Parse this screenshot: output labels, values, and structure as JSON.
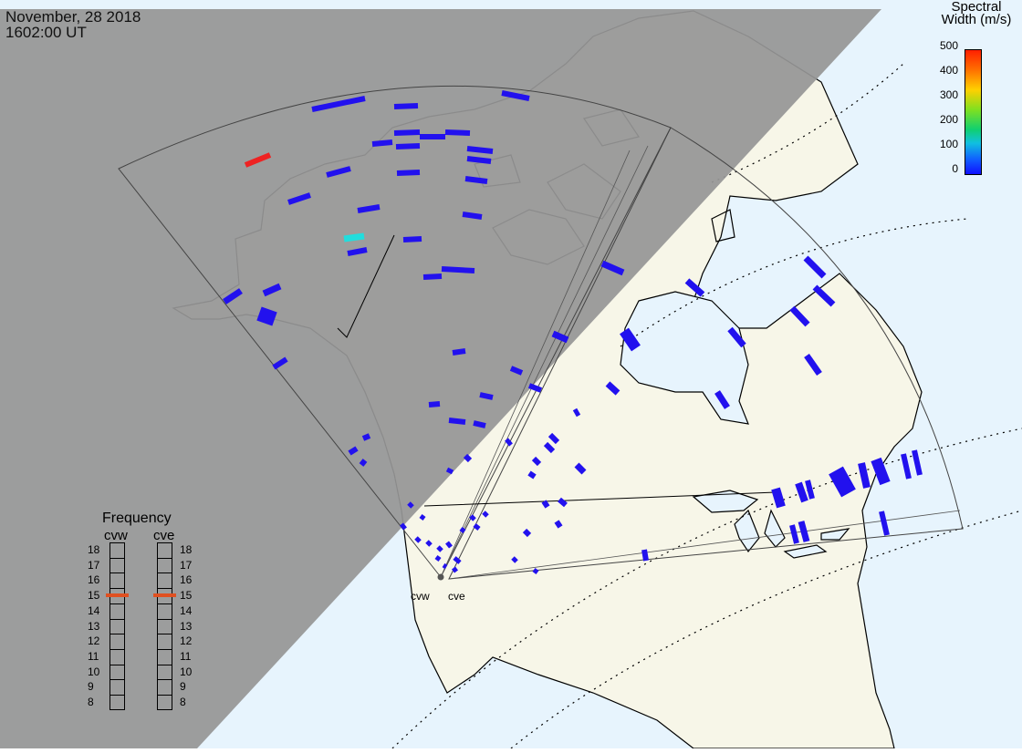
{
  "header": {
    "date": "November, 28 2018",
    "time": "1602:00 UT"
  },
  "colors": {
    "night": "#969696",
    "ocean": "#e7f4fd",
    "land": "#f7f6e8",
    "echo": "#2211ee",
    "echo_cyan": "#22dddd",
    "echo_red": "#ee2222",
    "freq_marker": "#e05020"
  },
  "colorbar": {
    "title_line1": "Spectral",
    "title_line2": "Width (m/s)",
    "ticks": [
      "500",
      "400",
      "300",
      "200",
      "100",
      "0"
    ]
  },
  "frequency_panel": {
    "title": "Frequency",
    "radars": [
      {
        "name": "cvw",
        "selected_mhz": 15
      },
      {
        "name": "cve",
        "selected_mhz": 15
      }
    ],
    "levels": [
      "18",
      "17",
      "16",
      "15",
      "14",
      "13",
      "12",
      "11",
      "10",
      "9",
      "8"
    ]
  },
  "sites": [
    {
      "name": "cvw"
    },
    {
      "name": "cve"
    }
  ]
}
